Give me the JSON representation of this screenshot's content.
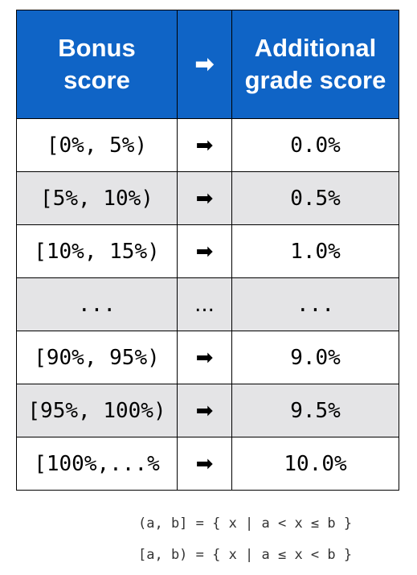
{
  "header": {
    "col1": [
      "Bonus",
      "score"
    ],
    "arrow": "➡",
    "col3": [
      "Additional",
      "grade score"
    ]
  },
  "rows": [
    {
      "range": "[0%, 5%)",
      "arrow": "➡",
      "grade": "0.0%",
      "shaded": false
    },
    {
      "range": "[5%, 10%)",
      "arrow": "➡",
      "grade": "0.5%",
      "shaded": true
    },
    {
      "range": "[10%, 15%)",
      "arrow": "➡",
      "grade": "1.0%",
      "shaded": false
    },
    {
      "range": "...",
      "arrow": "...",
      "grade": "...",
      "shaded": true
    },
    {
      "range": "[90%, 95%)",
      "arrow": "➡",
      "grade": "9.0%",
      "shaded": false
    },
    {
      "range": "[95%, 100%)",
      "arrow": "➡",
      "grade": "9.5%",
      "shaded": true
    },
    {
      "range": "[100%,...%",
      "arrow": "➡",
      "grade": "10.0%",
      "shaded": false
    }
  ],
  "notes": [
    "(a, b] = { x | a < x ≤ b }",
    "[a, b) = { x | a ≤ x < b }"
  ],
  "colors": {
    "header_bg": "#0f64c6",
    "shaded_bg": "#e4e4e6"
  }
}
